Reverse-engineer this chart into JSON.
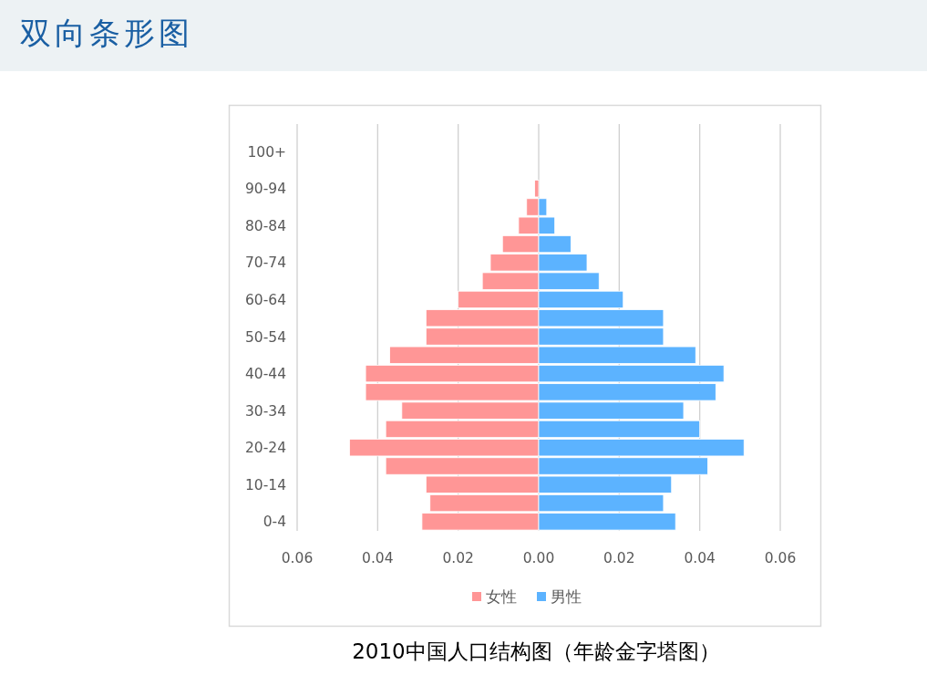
{
  "chart_data": {
    "type": "bar",
    "orientation": "horizontal",
    "title": "双向条形图",
    "annotations": [
      "2010中国人口结构图（年龄金字塔图）"
    ],
    "categories": [
      "100+",
      null,
      "90-94",
      null,
      "80-84",
      null,
      "70-74",
      null,
      "60-64",
      null,
      "50-54",
      null,
      "40-44",
      null,
      "30-34",
      null,
      "20-24",
      null,
      "10-14",
      null,
      "0-4"
    ],
    "series": [
      {
        "name": "女性",
        "color": "#ff9696",
        "values": [
          0,
          0,
          -0.001,
          -0.003,
          -0.005,
          -0.009,
          -0.012,
          -0.014,
          -0.02,
          -0.028,
          -0.028,
          -0.037,
          -0.043,
          -0.043,
          -0.034,
          -0.038,
          -0.047,
          -0.038,
          -0.028,
          -0.027,
          -0.029
        ]
      },
      {
        "name": "男性",
        "color": "#5cb3ff",
        "values": [
          0,
          0,
          0,
          0.002,
          0.004,
          0.008,
          0.012,
          0.015,
          0.021,
          0.031,
          0.031,
          0.039,
          0.046,
          0.044,
          0.036,
          0.04,
          0.051,
          0.042,
          0.033,
          0.031,
          0.034
        ]
      }
    ],
    "xlim": [
      -0.06,
      0.06
    ],
    "xticks": [
      {
        "value": -0.06,
        "label": "0.06"
      },
      {
        "value": -0.04,
        "label": "0.04"
      },
      {
        "value": -0.02,
        "label": "0.02"
      },
      {
        "value": 0,
        "label": "0.00"
      },
      {
        "value": 0.02,
        "label": "0.02"
      },
      {
        "value": 0.04,
        "label": "0.04"
      },
      {
        "value": 0.06,
        "label": "0.06"
      }
    ],
    "stacked": true,
    "grid": "x",
    "legend": "bottom"
  }
}
